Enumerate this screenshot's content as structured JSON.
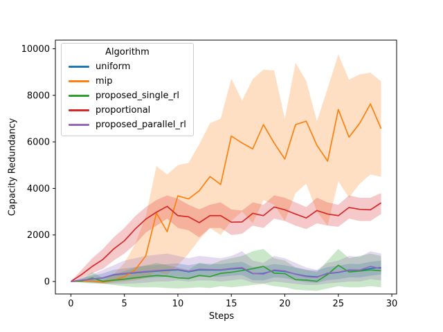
{
  "figure": {
    "xlabel": "Steps",
    "ylabel": "Capacity Redundancy",
    "legend_title": "Algorithm"
  },
  "chart_data": {
    "type": "line",
    "title": "",
    "xlabel": "Steps",
    "ylabel": "Capacity Redundancy",
    "xlim": [
      -1.45,
      30.45
    ],
    "ylim": [
      -535,
      10372
    ],
    "x_ticks": [
      0,
      5,
      10,
      15,
      20,
      25,
      30
    ],
    "y_ticks": [
      0,
      2000,
      4000,
      6000,
      8000,
      10000
    ],
    "grid": false,
    "legend_position": "upper-left",
    "legend_title": "Algorithm",
    "band_alpha": 0.25,
    "x": [
      0,
      1,
      2,
      3,
      4,
      5,
      6,
      7,
      8,
      9,
      10,
      11,
      12,
      13,
      14,
      15,
      16,
      17,
      18,
      19,
      20,
      21,
      22,
      23,
      24,
      25,
      26,
      27,
      28,
      29
    ],
    "series": [
      {
        "name": "uniform",
        "color": "#1f77b4",
        "values": [
          0,
          50,
          100,
          150,
          280,
          330,
          370,
          410,
          450,
          480,
          500,
          420,
          500,
          495,
          490,
          540,
          570,
          340,
          350,
          470,
          430,
          320,
          230,
          200,
          340,
          390,
          480,
          470,
          560,
          600
        ],
        "band_upper": [
          0,
          150,
          250,
          350,
          500,
          560,
          620,
          680,
          720,
          750,
          780,
          700,
          780,
          760,
          750,
          800,
          850,
          620,
          650,
          750,
          700,
          600,
          500,
          470,
          620,
          680,
          760,
          750,
          850,
          900
        ],
        "band_lower": [
          0,
          -30,
          -50,
          -60,
          0,
          50,
          100,
          150,
          180,
          200,
          220,
          150,
          220,
          210,
          200,
          250,
          280,
          60,
          50,
          180,
          150,
          50,
          -30,
          -60,
          60,
          100,
          180,
          170,
          250,
          300
        ]
      },
      {
        "name": "mip",
        "color": "#ff7f0e",
        "values": [
          0,
          10,
          20,
          -30,
          50,
          210,
          500,
          1100,
          2940,
          2140,
          3680,
          3550,
          3900,
          4510,
          4170,
          6250,
          5950,
          5700,
          6740,
          5950,
          5260,
          6740,
          6890,
          5850,
          5170,
          7390,
          6200,
          6800,
          7630,
          6570
        ],
        "band_upper": [
          0,
          30,
          60,
          40,
          300,
          800,
          1600,
          2800,
          4960,
          4600,
          5000,
          5100,
          5900,
          6800,
          7000,
          8720,
          7780,
          8700,
          9100,
          9070,
          7000,
          9400,
          8620,
          6890,
          8300,
          9760,
          8670,
          8900,
          8970,
          8600
        ],
        "band_lower": [
          0,
          -10,
          -20,
          -90,
          -60,
          0,
          50,
          150,
          400,
          300,
          700,
          1200,
          1800,
          2300,
          2000,
          2600,
          3000,
          2500,
          3500,
          3300,
          2600,
          3800,
          4200,
          3000,
          2400,
          4300,
          3600,
          4200,
          4600,
          4500
        ]
      },
      {
        "name": "proposed_single_rl",
        "color": "#2ca02c",
        "values": [
          0,
          20,
          150,
          10,
          60,
          100,
          160,
          210,
          260,
          230,
          160,
          130,
          260,
          210,
          350,
          400,
          470,
          550,
          650,
          360,
          340,
          80,
          60,
          10,
          300,
          700,
          410,
          450,
          500,
          460
        ],
        "band_upper": [
          0,
          100,
          400,
          150,
          300,
          450,
          600,
          700,
          800,
          700,
          600,
          500,
          800,
          700,
          900,
          1000,
          1100,
          1300,
          1400,
          1000,
          900,
          600,
          500,
          400,
          900,
          1400,
          1000,
          1100,
          1200,
          1100
        ],
        "band_lower": [
          0,
          -50,
          -80,
          -100,
          -150,
          -200,
          -250,
          -250,
          -250,
          -280,
          -300,
          -280,
          -250,
          -280,
          -200,
          -250,
          -200,
          -150,
          -100,
          -200,
          -250,
          -350,
          -380,
          -400,
          -300,
          -200,
          -250,
          -250,
          -200,
          -250
        ]
      },
      {
        "name": "proportional",
        "color": "#d62728",
        "values": [
          0,
          300,
          650,
          950,
          1400,
          1750,
          2250,
          2680,
          2980,
          3230,
          2830,
          2780,
          2530,
          2830,
          2830,
          2550,
          2560,
          2930,
          2830,
          3200,
          3080,
          2900,
          2730,
          3050,
          2900,
          2830,
          3180,
          3100,
          3080,
          3380
        ],
        "band_upper": [
          0,
          500,
          1000,
          1400,
          1900,
          2300,
          2800,
          3200,
          3500,
          3700,
          3560,
          3300,
          3100,
          3300,
          3400,
          3100,
          3050,
          3400,
          3300,
          3700,
          3600,
          3400,
          3200,
          3600,
          3400,
          3300,
          3700,
          3600,
          3600,
          3800
        ],
        "band_lower": [
          0,
          150,
          350,
          550,
          900,
          1200,
          1600,
          2100,
          2400,
          2700,
          2300,
          2200,
          1900,
          2300,
          2300,
          2000,
          2050,
          2400,
          2300,
          2700,
          2600,
          2400,
          2250,
          2500,
          2400,
          2350,
          2700,
          2600,
          2600,
          2900
        ]
      },
      {
        "name": "proposed_parallel_rl",
        "color": "#9467bd",
        "values": [
          0,
          60,
          110,
          160,
          300,
          350,
          390,
          430,
          470,
          500,
          520,
          440,
          525,
          515,
          505,
          560,
          600,
          350,
          320,
          500,
          455,
          310,
          210,
          180,
          360,
          400,
          500,
          490,
          650,
          550
        ],
        "band_upper": [
          0,
          150,
          300,
          500,
          700,
          900,
          1000,
          1100,
          1150,
          1200,
          1100,
          1000,
          1100,
          1050,
          1000,
          1100,
          1300,
          900,
          800,
          1100,
          1000,
          800,
          600,
          500,
          800,
          900,
          1100,
          1050,
          1300,
          1200
        ],
        "band_lower": [
          0,
          0,
          -50,
          -80,
          -100,
          -100,
          -80,
          -50,
          0,
          0,
          50,
          0,
          50,
          50,
          0,
          50,
          100,
          -50,
          -80,
          0,
          -50,
          -100,
          -150,
          -150,
          -80,
          -50,
          0,
          0,
          100,
          50
        ]
      }
    ]
  }
}
